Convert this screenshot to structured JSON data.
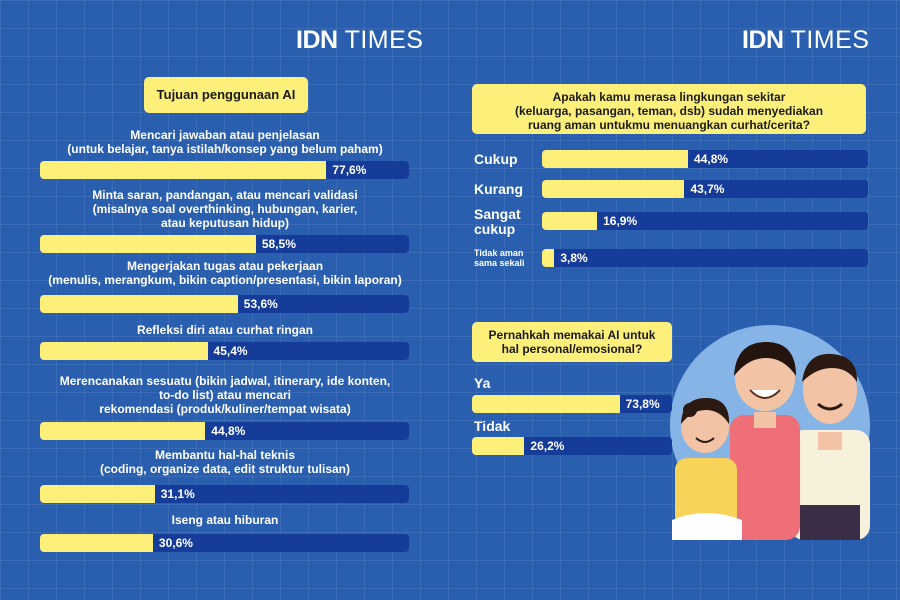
{
  "brand": {
    "bold": "IDN",
    "light": "TIMES"
  },
  "chart_data": [
    {
      "type": "bar",
      "title": "Tujuan penggunaan AI",
      "xlim": [
        0,
        100
      ],
      "categories": [
        "Mencari jawaban atau penjelasan\n(untuk belajar, tanya istilah/konsep yang belum paham)",
        "Minta saran, pandangan, atau mencari validasi\n(misalnya soal overthinking, hubungan, karier,\natau keputusan hidup)",
        "Mengerjakan tugas atau pekerjaan\n(menulis, merangkum, bikin caption/presentasi, bikin laporan)",
        "Refleksi diri atau curhat ringan",
        "Merencanakan sesuatu (bikin jadwal, itinerary, ide konten,\nto-do list) atau mencari\nrekomendasi (produk/kuliner/tempat wisata)",
        "Membantu hal-hal teknis\n(coding, organize data, edit struktur tulisan)",
        "Iseng atau hiburan"
      ],
      "values": [
        77.6,
        58.5,
        53.6,
        45.4,
        44.8,
        31.1,
        30.6
      ],
      "labels": [
        "77,6%",
        "58,5%",
        "53,6%",
        "45,4%",
        "44,8%",
        "31,1%",
        "30,6%"
      ]
    },
    {
      "type": "bar",
      "title": "Apakah kamu merasa lingkungan sekitar\n(keluarga, pasangan, teman, dsb) sudah menyediakan\nruang aman untukmu menuangkan curhat/cerita?",
      "xlim": [
        0,
        100
      ],
      "categories": [
        "Cukup",
        "Kurang",
        "Sangat\ncukup",
        "Tidak aman\nsama sekali"
      ],
      "values": [
        44.8,
        43.7,
        16.9,
        3.8
      ],
      "labels": [
        "44,8%",
        "43,7%",
        "16,9%",
        "3,8%"
      ]
    },
    {
      "type": "bar",
      "title": "Pernahkah memakai AI untuk\nhal personal/emosional?",
      "xlim": [
        0,
        100
      ],
      "categories": [
        "Ya",
        "Tidak"
      ],
      "values": [
        73.8,
        26.2
      ],
      "labels": [
        "73,8%",
        "26,2%"
      ]
    }
  ]
}
